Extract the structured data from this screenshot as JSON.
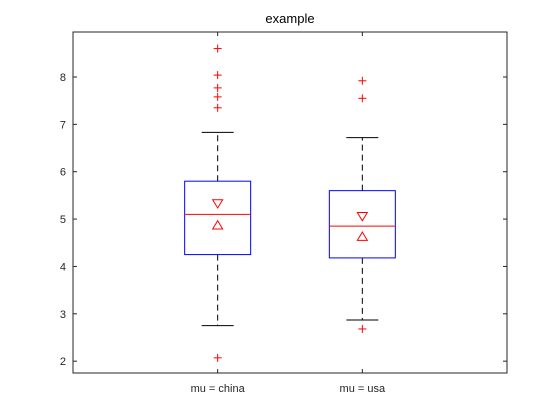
{
  "chart_data": {
    "type": "box",
    "title": "example",
    "xlabel": "",
    "ylabel": "",
    "ylim": [
      1.75,
      8.95
    ],
    "yticks": [
      2,
      3,
      4,
      5,
      6,
      7,
      8
    ],
    "grid": false,
    "categories": [
      "mu = china",
      "mu = usa"
    ],
    "boxes": [
      {
        "category": "mu = china",
        "whisker_low": 2.75,
        "q1": 4.25,
        "median": 5.1,
        "q3": 5.8,
        "whisker_high": 6.83,
        "notch_low": 4.87,
        "notch_high": 5.33,
        "outliers": [
          2.07,
          7.35,
          7.58,
          7.77,
          8.04,
          8.6
        ]
      },
      {
        "category": "mu = usa",
        "whisker_low": 2.87,
        "q1": 4.18,
        "median": 4.85,
        "q3": 5.6,
        "whisker_high": 6.72,
        "notch_low": 4.63,
        "notch_high": 5.06,
        "outliers": [
          2.68,
          7.55,
          7.92
        ]
      }
    ],
    "colors": {
      "box": "#0000ff",
      "median": "#ff0000",
      "whisker": "#000000",
      "outlier": "#ff0000",
      "axes": "#262626"
    }
  }
}
